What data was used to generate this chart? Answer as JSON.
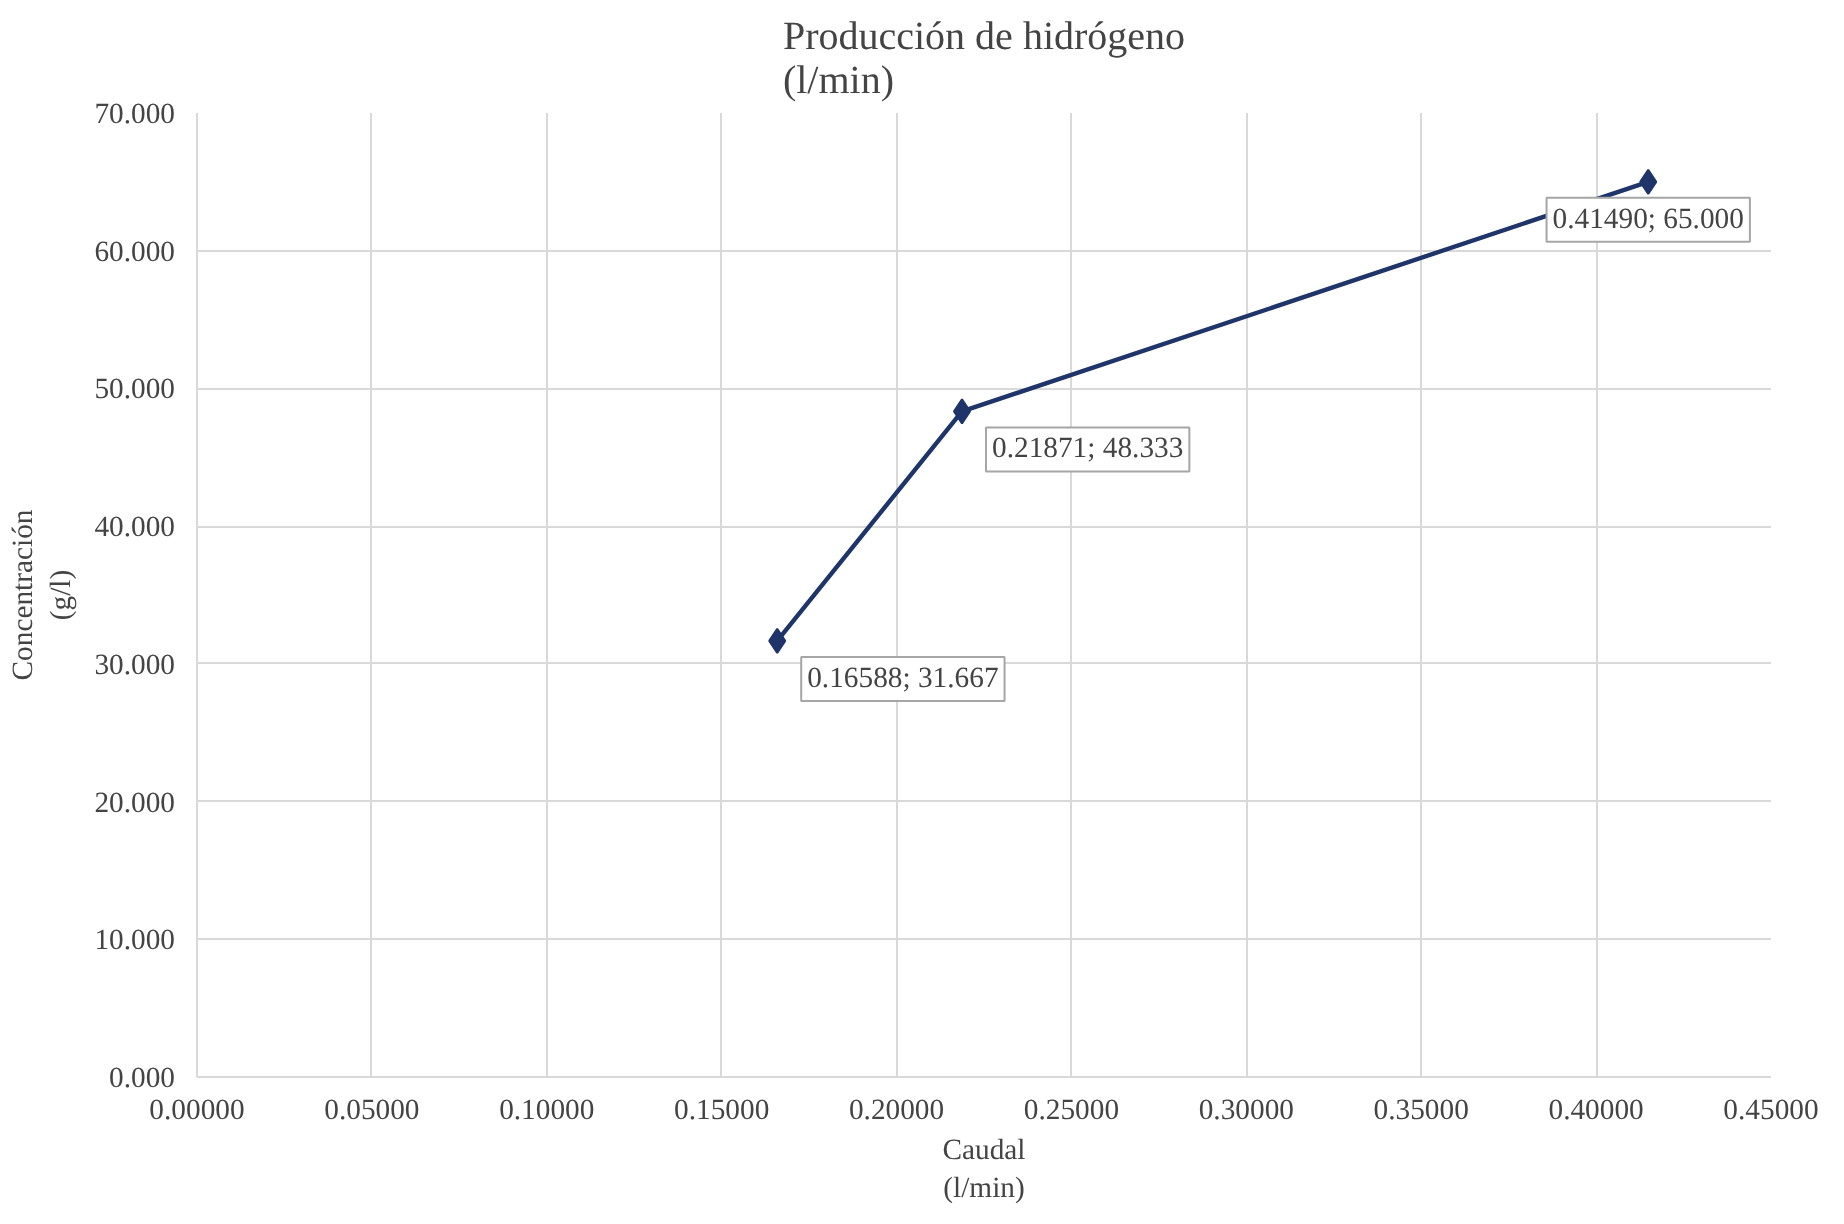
{
  "chart_data": {
    "type": "line",
    "title": "Producción de hidrógeno\n(l/min)",
    "xlabel": "Caudal\n(l/min)",
    "ylabel": "Concentración\n(g/l)",
    "x": [
      0.16588,
      0.21871,
      0.4149
    ],
    "series": [
      {
        "color": "#1f3468",
        "values": [
          31.667,
          48.333,
          65.0
        ],
        "value_labels": [
          "0.16588; 31.667",
          "0.21871; 48.333",
          "0.41490; 65.000"
        ]
      }
    ],
    "xlim": [
      0,
      0.45
    ],
    "ylim": [
      0,
      70
    ],
    "xticks": [
      {
        "value": 0,
        "label": "0.00000"
      },
      {
        "value": 0.05,
        "label": "0.05000"
      },
      {
        "value": 0.1,
        "label": "0.10000"
      },
      {
        "value": 0.15,
        "label": "0.15000"
      },
      {
        "value": 0.2,
        "label": "0.20000"
      },
      {
        "value": 0.25,
        "label": "0.25000"
      },
      {
        "value": 0.3,
        "label": "0.30000"
      },
      {
        "value": 0.35,
        "label": "0.35000"
      },
      {
        "value": 0.4,
        "label": "0.40000"
      },
      {
        "value": 0.45,
        "label": "0.45000"
      }
    ],
    "yticks": [
      {
        "value": 0,
        "label": "0.000"
      },
      {
        "value": 10,
        "label": "10.000"
      },
      {
        "value": 20,
        "label": "20.000"
      },
      {
        "value": 30,
        "label": "30.000"
      },
      {
        "value": 40,
        "label": "40.000"
      },
      {
        "value": 50,
        "label": "50.000"
      },
      {
        "value": 60,
        "label": "60.000"
      },
      {
        "value": 70,
        "label": "70.000"
      }
    ],
    "grid": true,
    "marker": "diamond",
    "line_style": "solid"
  }
}
